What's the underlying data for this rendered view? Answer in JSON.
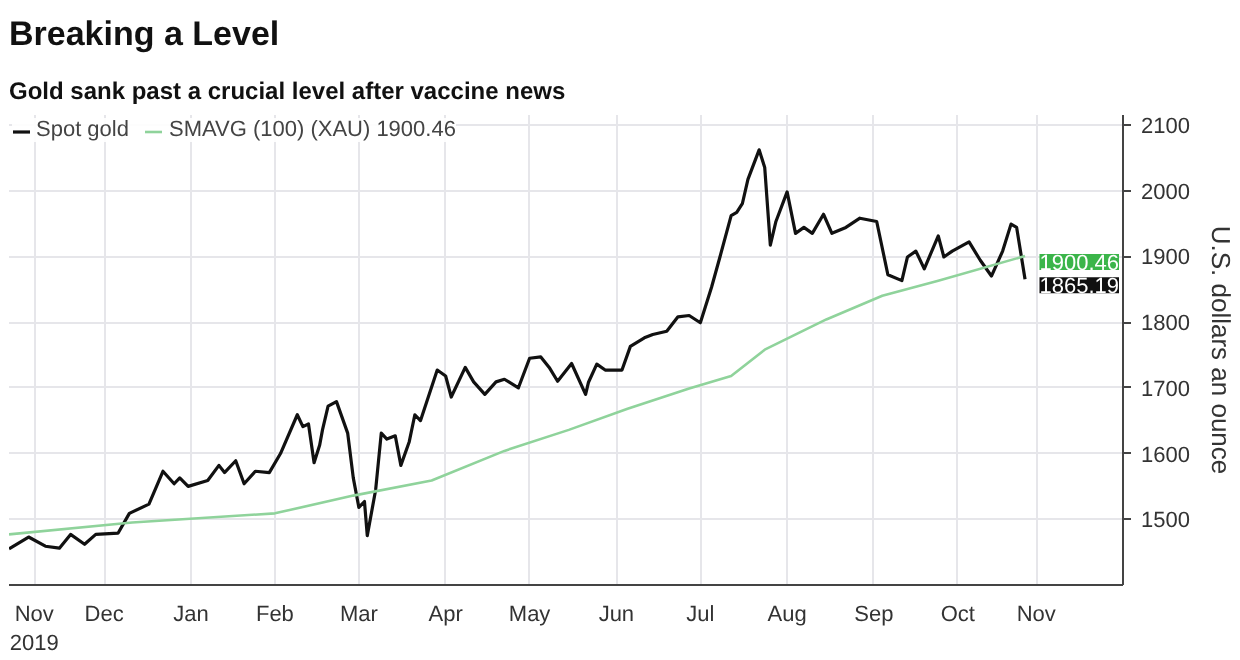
{
  "chart_data": {
    "type": "line",
    "title": "Breaking a Level",
    "subtitle": "Gold sank past a crucial level after vaccine news",
    "ylabel": "U.S. dollars an ounce",
    "xlim": [
      "2019-11-12",
      "2020-12-14"
    ],
    "xticks": [
      {
        "value": "2019-11-21",
        "label": "Nov\n2019"
      },
      {
        "value": "2019-12-16",
        "label": "Dec"
      },
      {
        "value": "2020-01-16",
        "label": "Jan"
      },
      {
        "value": "2020-02-15",
        "label": "Feb"
      },
      {
        "value": "2020-03-16",
        "label": "Mar"
      },
      {
        "value": "2020-04-16",
        "label": "Apr"
      },
      {
        "value": "2020-05-16",
        "label": "May"
      },
      {
        "value": "2020-06-16",
        "label": "Jun"
      },
      {
        "value": "2020-07-16",
        "label": "Jul"
      },
      {
        "value": "2020-08-16",
        "label": "Aug"
      },
      {
        "value": "2020-09-16",
        "label": "Sep"
      },
      {
        "value": "2020-10-16",
        "label": "Oct"
      },
      {
        "value": "2020-11-13",
        "label": "Nov"
      }
    ],
    "ylim": [
      1400,
      2115
    ],
    "yticks": [
      1500,
      1600,
      1700,
      1800,
      1900,
      2000,
      2100
    ],
    "grid": true,
    "legend": "top left",
    "series": [
      {
        "name": "Spot gold",
        "color": "#111111",
        "x": [
          "2019-11-12",
          "2019-11-19",
          "2019-11-25",
          "2019-11-30",
          "2019-12-04",
          "2019-12-09",
          "2019-12-13",
          "2019-12-21",
          "2019-12-25",
          "2020-01-01",
          "2020-01-06",
          "2020-01-10",
          "2020-01-12",
          "2020-01-15",
          "2020-01-22",
          "2020-01-26",
          "2020-01-28",
          "2020-02-01",
          "2020-02-04",
          "2020-02-08",
          "2020-02-13",
          "2020-02-17",
          "2020-02-23",
          "2020-02-25",
          "2020-02-27",
          "2020-02-29",
          "2020-03-02",
          "2020-03-03",
          "2020-03-05",
          "2020-03-08",
          "2020-03-12",
          "2020-03-14",
          "2020-03-16",
          "2020-03-18",
          "2020-03-19",
          "2020-03-22",
          "2020-03-24",
          "2020-03-26",
          "2020-03-29",
          "2020-03-31",
          "2020-04-03",
          "2020-04-05",
          "2020-04-07",
          "2020-04-13",
          "2020-04-16",
          "2020-04-18",
          "2020-04-23",
          "2020-04-26",
          "2020-04-30",
          "2020-05-04",
          "2020-05-07",
          "2020-05-12",
          "2020-05-16",
          "2020-05-20",
          "2020-05-23",
          "2020-05-26",
          "2020-05-31",
          "2020-06-05",
          "2020-06-06",
          "2020-06-09",
          "2020-06-12",
          "2020-06-18",
          "2020-06-21",
          "2020-06-26",
          "2020-06-29",
          "2020-07-04",
          "2020-07-08",
          "2020-07-12",
          "2020-07-16",
          "2020-07-20",
          "2020-07-23",
          "2020-07-27",
          "2020-07-29",
          "2020-07-31",
          "2020-08-02",
          "2020-08-06",
          "2020-08-08",
          "2020-08-10",
          "2020-08-12",
          "2020-08-16",
          "2020-08-19",
          "2020-08-22",
          "2020-08-25",
          "2020-08-29",
          "2020-09-01",
          "2020-09-06",
          "2020-09-11",
          "2020-09-17",
          "2020-09-21",
          "2020-09-26",
          "2020-09-28",
          "2020-10-01",
          "2020-10-04",
          "2020-10-09",
          "2020-10-11",
          "2020-10-14",
          "2020-10-20",
          "2020-10-24",
          "2020-10-28",
          "2020-11-01",
          "2020-11-04",
          "2020-11-06",
          "2020-11-09"
        ],
        "values": [
          1455,
          1473,
          1459,
          1456,
          1477,
          1462,
          1477,
          1479,
          1509,
          1523,
          1573,
          1554,
          1563,
          1550,
          1559,
          1582,
          1571,
          1589,
          1554,
          1573,
          1571,
          1600,
          1659,
          1641,
          1645,
          1586,
          1613,
          1636,
          1672,
          1679,
          1631,
          1563,
          1518,
          1527,
          1475,
          1545,
          1631,
          1622,
          1627,
          1582,
          1618,
          1659,
          1650,
          1727,
          1718,
          1686,
          1731,
          1709,
          1690,
          1709,
          1713,
          1700,
          1745,
          1747,
          1731,
          1710,
          1737,
          1690,
          1708,
          1736,
          1727,
          1727,
          1763,
          1776,
          1781,
          1786,
          1808,
          1810,
          1799,
          1853,
          1899,
          1962,
          1967,
          1980,
          2017,
          2062,
          2035,
          1917,
          1953,
          1998,
          1935,
          1944,
          1935,
          1964,
          1935,
          1944,
          1958,
          1953,
          1872,
          1863,
          1899,
          1908,
          1881,
          1931,
          1899,
          1908,
          1922,
          1894,
          1870,
          1908,
          1949,
          1944,
          1865.19
        ],
        "value_labels": [
          null,
          null,
          null,
          null,
          null,
          null,
          null,
          null,
          null,
          null,
          null,
          null,
          null,
          null,
          null,
          null,
          null,
          null,
          null,
          null,
          null,
          null,
          null,
          null,
          null,
          null,
          null,
          null,
          null,
          null,
          null,
          null,
          null,
          null,
          null,
          null,
          null,
          null,
          null,
          null,
          null,
          null,
          null,
          null,
          null,
          null,
          null,
          null,
          null,
          null,
          null,
          null,
          null,
          null,
          null,
          null,
          null,
          null,
          null,
          null,
          null,
          null,
          null,
          null,
          null,
          null,
          null,
          null,
          null,
          null,
          null,
          null,
          null,
          null,
          null,
          null,
          null,
          null,
          null,
          null,
          null,
          null,
          null,
          null,
          null,
          null,
          null,
          null,
          null,
          null,
          null,
          null,
          null,
          null,
          null,
          null,
          null,
          null,
          null,
          null,
          null,
          null,
          "1865.19"
        ]
      },
      {
        "name": "SMAVG (100) (XAU) 1900.46",
        "color": "#8fd39b",
        "x": [
          "2019-11-12",
          "2019-12-26",
          "2020-02-15",
          "2020-03-14",
          "2020-04-11",
          "2020-05-07",
          "2020-05-30",
          "2020-06-20",
          "2020-07-12",
          "2020-07-27",
          "2020-08-08",
          "2020-08-30",
          "2020-09-19",
          "2020-10-09",
          "2020-11-09"
        ],
        "values": [
          1477,
          1495,
          1509,
          1536,
          1559,
          1604,
          1636,
          1668,
          1699,
          1718,
          1758,
          1804,
          1840,
          1863,
          1900.46
        ],
        "value_labels": [
          null,
          null,
          null,
          null,
          null,
          null,
          null,
          null,
          null,
          null,
          null,
          null,
          null,
          null,
          "1900.46"
        ]
      }
    ]
  }
}
